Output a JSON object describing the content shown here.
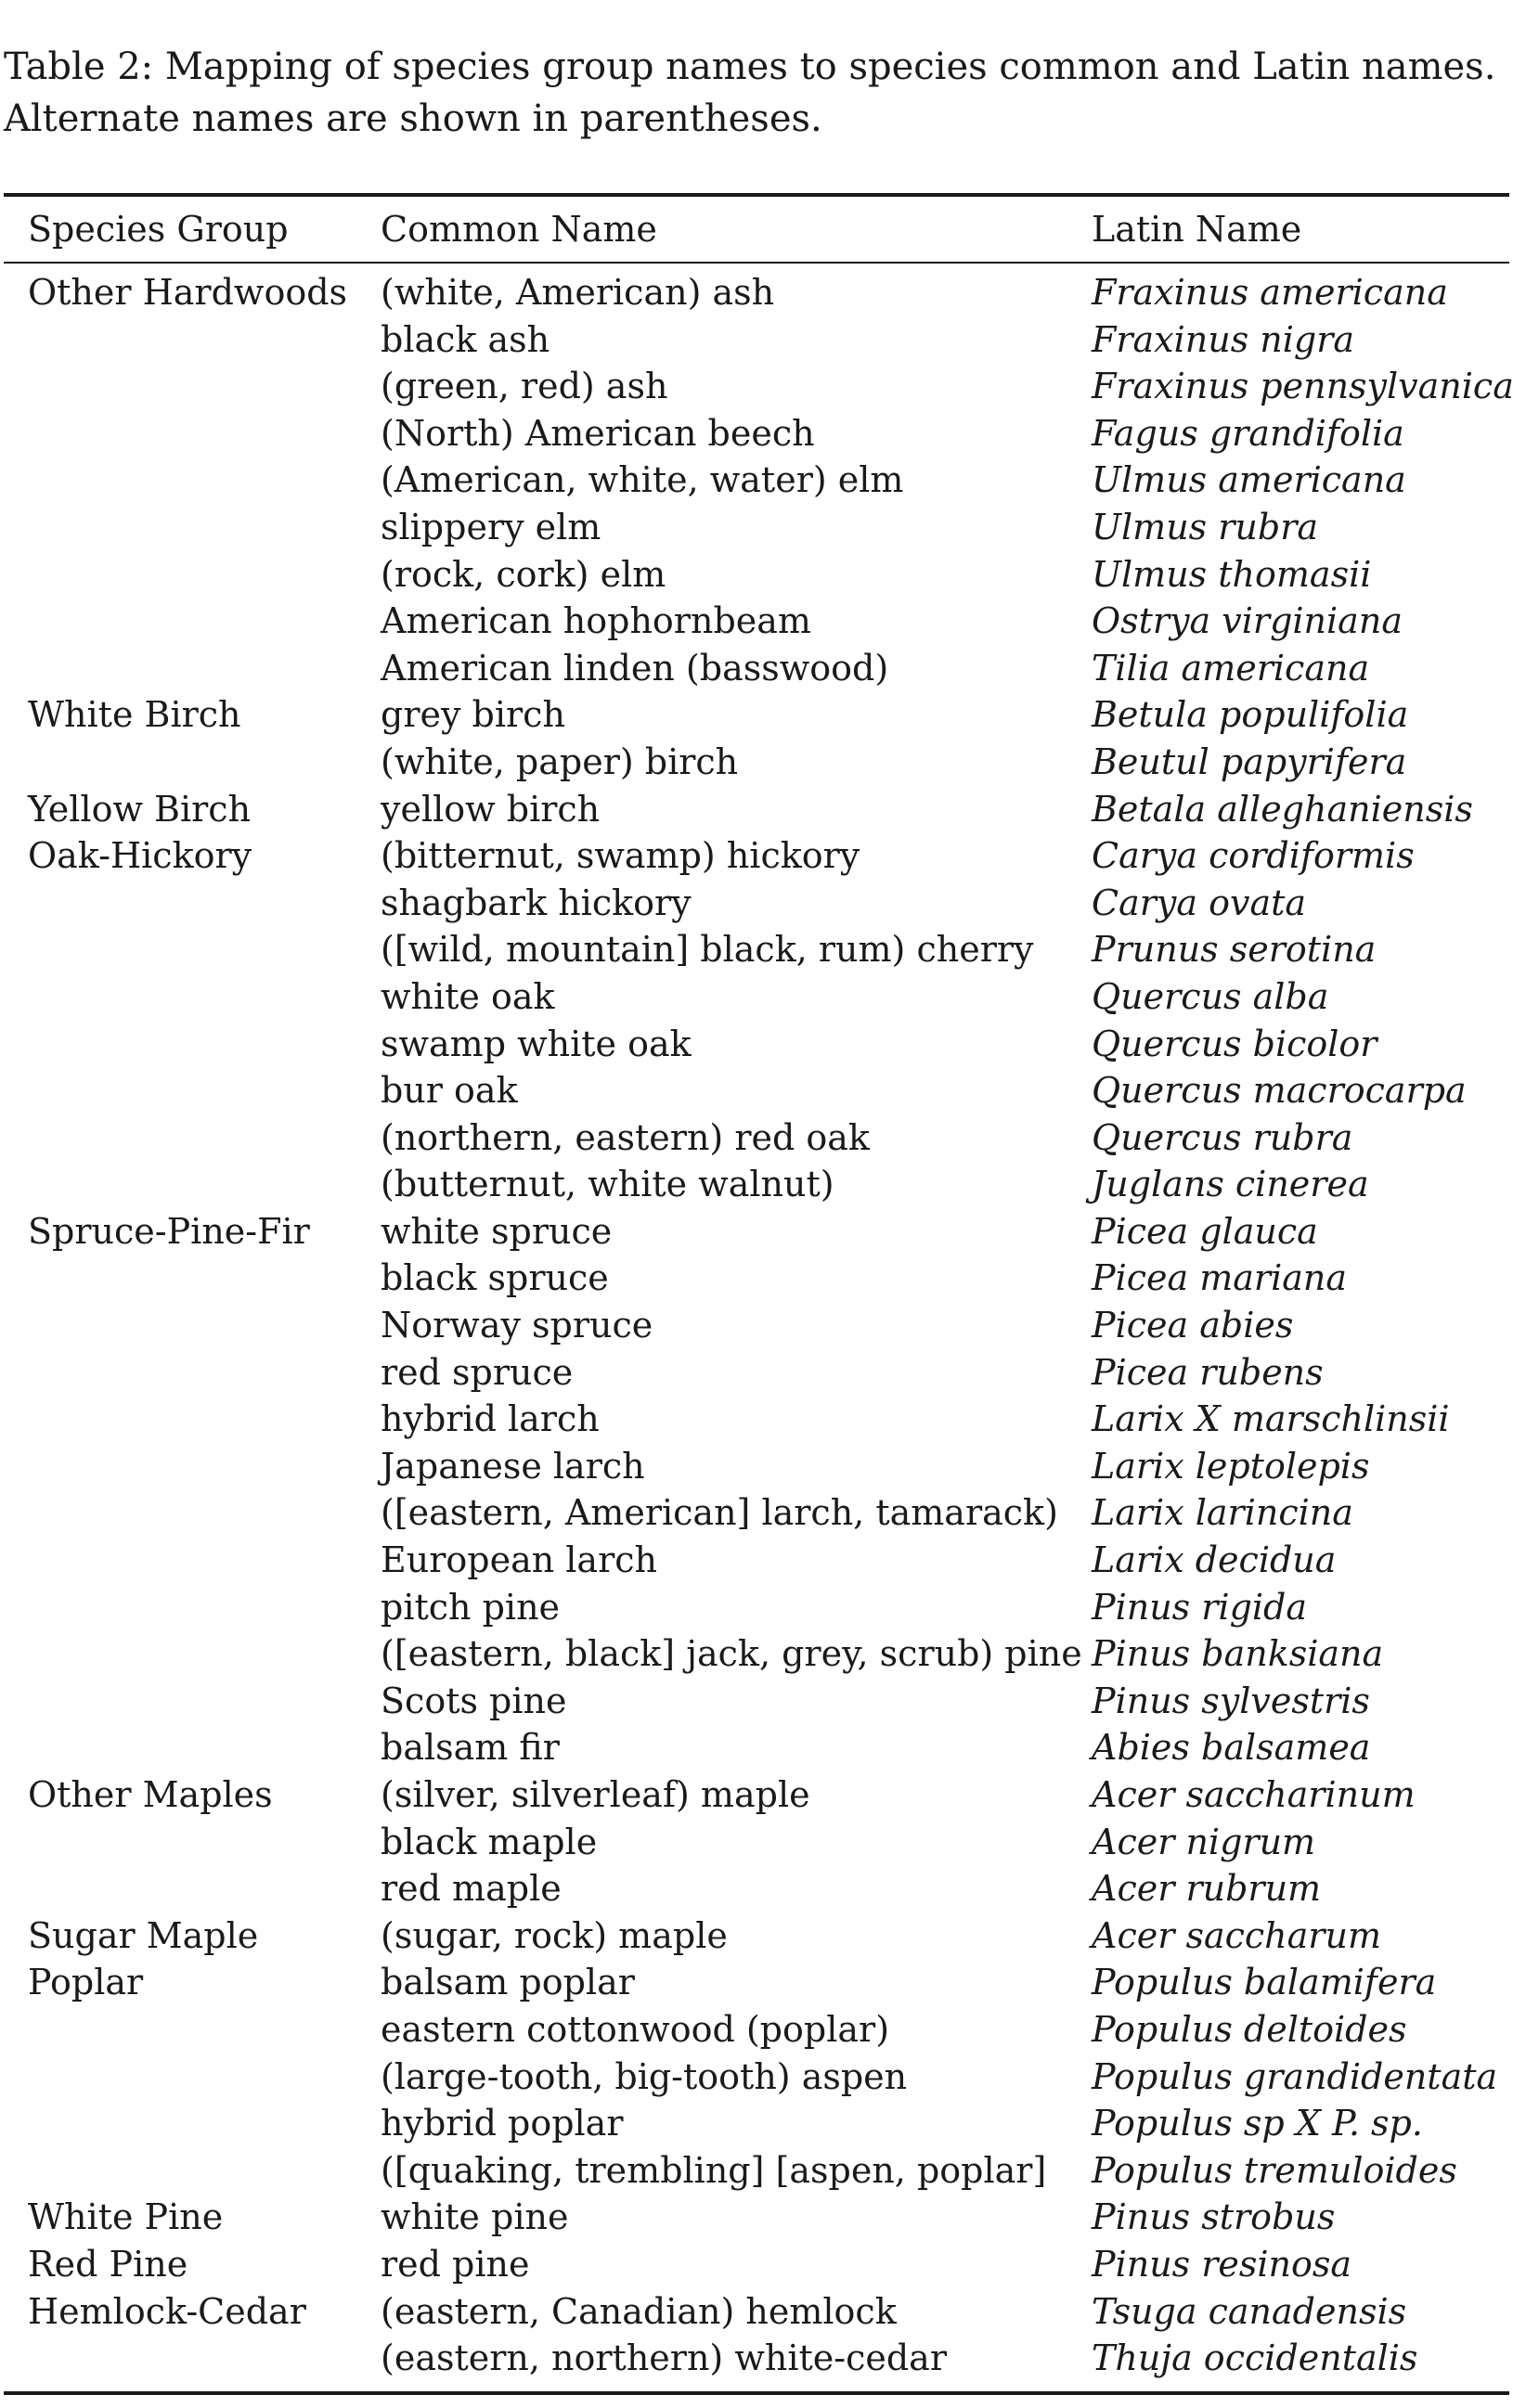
{
  "caption": {
    "line1": "Table 2: Mapping of species group names to species common and Latin names.",
    "line2": "Alternate names are shown in parentheses."
  },
  "table": {
    "headers": {
      "group": "Species Group",
      "common": "Common Name",
      "latin": "Latin Name"
    },
    "rows": [
      {
        "group": "Other Hardwoods",
        "common": "(white, American) ash",
        "latin": "Fraxinus americana"
      },
      {
        "group": "",
        "common": "black ash",
        "latin": "Fraxinus nigra"
      },
      {
        "group": "",
        "common": "(green, red) ash",
        "latin": "Fraxinus pennsylvanica"
      },
      {
        "group": "",
        "common": "(North) American beech",
        "latin": "Fagus grandifolia"
      },
      {
        "group": "",
        "common": "(American, white, water) elm",
        "latin": "Ulmus americana"
      },
      {
        "group": "",
        "common": "slippery elm",
        "latin": "Ulmus rubra"
      },
      {
        "group": "",
        "common": "(rock, cork) elm",
        "latin": "Ulmus thomasii"
      },
      {
        "group": "",
        "common": "American hophornbeam",
        "latin": "Ostrya virginiana"
      },
      {
        "group": "",
        "common": "American linden (basswood)",
        "latin": "Tilia americana"
      },
      {
        "group": "White Birch",
        "common": "grey birch",
        "latin": "Betula populifolia"
      },
      {
        "group": "",
        "common": "(white, paper) birch",
        "latin": "Beutul papyrifera"
      },
      {
        "group": "Yellow Birch",
        "common": "yellow birch",
        "latin": "Betala alleghaniensis"
      },
      {
        "group": "Oak-Hickory",
        "common": "(bitternut, swamp) hickory",
        "latin": "Carya cordiformis"
      },
      {
        "group": "",
        "common": "shagbark hickory",
        "latin": "Carya ovata"
      },
      {
        "group": "",
        "common": "([wild, mountain] black, rum) cherry",
        "latin": "Prunus serotina"
      },
      {
        "group": "",
        "common": "white oak",
        "latin": "Quercus alba"
      },
      {
        "group": "",
        "common": "swamp white oak",
        "latin": "Quercus bicolor"
      },
      {
        "group": "",
        "common": "bur oak",
        "latin": "Quercus macrocarpa"
      },
      {
        "group": "",
        "common": "(northern, eastern) red oak",
        "latin": "Quercus rubra"
      },
      {
        "group": "",
        "common": "(butternut, white walnut)",
        "latin": "Juglans cinerea"
      },
      {
        "group": "Spruce-Pine-Fir",
        "common": "white spruce",
        "latin": "Picea glauca"
      },
      {
        "group": "",
        "common": "black spruce",
        "latin": "Picea mariana"
      },
      {
        "group": "",
        "common": "Norway spruce",
        "latin": "Picea abies"
      },
      {
        "group": "",
        "common": "red spruce",
        "latin": "Picea rubens"
      },
      {
        "group": "",
        "common": "hybrid larch",
        "latin": "Larix X marschlinsii"
      },
      {
        "group": "",
        "common": "Japanese larch",
        "latin": "Larix leptolepis"
      },
      {
        "group": "",
        "common": "([eastern, American] larch, tamarack)",
        "latin": "Larix larincina"
      },
      {
        "group": "",
        "common": "European larch",
        "latin": "Larix decidua"
      },
      {
        "group": "",
        "common": "pitch pine",
        "latin": "Pinus rigida"
      },
      {
        "group": "",
        "common": "([eastern, black] jack, grey, scrub) pine",
        "latin": "Pinus banksiana"
      },
      {
        "group": "",
        "common": "Scots pine",
        "latin": "Pinus sylvestris"
      },
      {
        "group": "",
        "common": "balsam fir",
        "latin": "Abies balsamea"
      },
      {
        "group": "Other Maples",
        "common": "(silver, silverleaf) maple",
        "latin": "Acer saccharinum"
      },
      {
        "group": "",
        "common": "black maple",
        "latin": "Acer nigrum"
      },
      {
        "group": "",
        "common": "red maple",
        "latin": "Acer rubrum"
      },
      {
        "group": "Sugar Maple",
        "common": "(sugar, rock) maple",
        "latin": "Acer saccharum"
      },
      {
        "group": "Poplar",
        "common": "balsam poplar",
        "latin": "Populus balamifera"
      },
      {
        "group": "",
        "common": "eastern cottonwood (poplar)",
        "latin": "Populus deltoides"
      },
      {
        "group": "",
        "common": "(large-tooth, big-tooth) aspen",
        "latin": "Populus grandidentata"
      },
      {
        "group": "",
        "common": "hybrid poplar",
        "latin": "Populus sp X P. sp."
      },
      {
        "group": "",
        "common": "([quaking, trembling] [aspen, poplar]",
        "latin": "Populus tremuloides"
      },
      {
        "group": "White Pine",
        "common": "white pine",
        "latin": "Pinus strobus"
      },
      {
        "group": "Red Pine",
        "common": "red pine",
        "latin": "Pinus resinosa"
      },
      {
        "group": "Hemlock-Cedar",
        "common": "(eastern, Canadian) hemlock",
        "latin": "Tsuga canadensis"
      },
      {
        "group": "",
        "common": "(eastern, northern) white-cedar",
        "latin": "Thuja occidentalis"
      }
    ]
  }
}
